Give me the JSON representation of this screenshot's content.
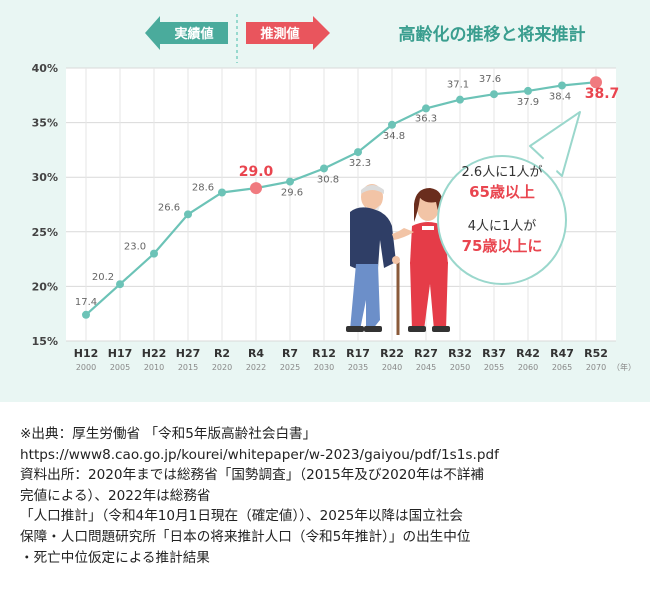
{
  "chart_data": {
    "type": "line",
    "title": "高齢化の推移と将来推計",
    "legend": {
      "actual": "実績値",
      "projected": "推測値"
    },
    "colors": {
      "actual": "#4aab9c",
      "projected": "#e9555d",
      "line": "#6cc3b7",
      "title": "#3a9e8f",
      "highlight": "#e9454f"
    },
    "categories": [
      "H12",
      "H17",
      "H22",
      "H27",
      "R2",
      "R4",
      "R7",
      "R12",
      "R17",
      "R22",
      "R27",
      "R32",
      "R37",
      "R42",
      "R47",
      "R52"
    ],
    "years": [
      "2000",
      "2005",
      "2010",
      "2015",
      "2020",
      "2022",
      "2025",
      "2030",
      "2035",
      "2040",
      "2045",
      "2050",
      "2055",
      "2060",
      "2065",
      "2070"
    ],
    "year_unit": "（年）",
    "values": [
      17.4,
      20.2,
      23.0,
      26.6,
      28.6,
      29.0,
      29.6,
      30.8,
      32.3,
      34.8,
      36.3,
      37.1,
      37.6,
      37.9,
      38.4,
      38.7
    ],
    "labels": [
      "17.4",
      "20.2",
      "23.0",
      "26.6",
      "28.6",
      "29.0",
      "29.6",
      "30.8",
      "32.3",
      "34.8",
      "36.3",
      "37.1",
      "37.6",
      "37.9",
      "38.4",
      "38.7"
    ],
    "highlight_indices": [
      5,
      15
    ],
    "y_ticks": [
      15,
      20,
      25,
      30,
      35,
      40
    ],
    "y_tick_labels": [
      "15%",
      "20%",
      "25%",
      "30%",
      "35%",
      "40%"
    ],
    "ylim": [
      15,
      40
    ],
    "grid": true,
    "callout": {
      "line1": "2.6人に1人が",
      "line2": "65歳以上",
      "line3": "4人に1人が",
      "line4": "75歳以上に"
    }
  },
  "source_note": [
    "※出典：厚生労働省 「令和5年版高齢社会白書」",
    "https://www8.cao.go.jp/kourei/whitepaper/w-2023/gaiyou/pdf/1s1s.pdf",
    "資料出所：2020年までは総務省「国勢調査」（2015年及び2020年は不詳補",
    "完値による）、2022年は総務省",
    "「人口推計」（令和4年10月1日現在（確定値））、2025年以降は国立社会",
    "保障・人口問題研究所「日本の将来推計人口（令和5年推計）」の出生中位",
    "・死亡中位仮定による推計結果"
  ]
}
